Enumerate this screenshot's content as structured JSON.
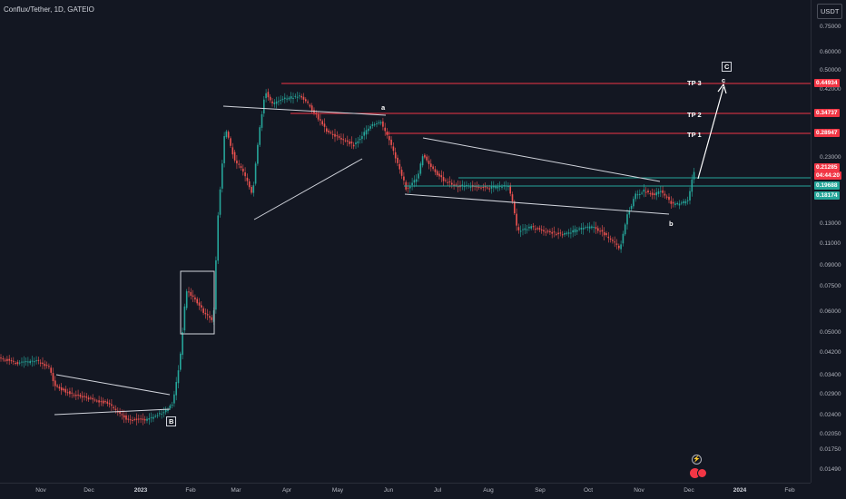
{
  "header": {
    "symbol_title": "Conflux/Tether, 1D, GATEIO",
    "currency": "USDT"
  },
  "price_axis": {
    "ticks": [
      "0.75000",
      "0.60000",
      "0.50000",
      "0.42000",
      "0.23000",
      "0.13000",
      "0.11000",
      "0.09000",
      "0.07500",
      "0.06000",
      "0.05000",
      "0.04200",
      "0.03400",
      "0.02900",
      "0.02400",
      "0.02050",
      "0.01750",
      "0.01490"
    ],
    "tags": [
      {
        "label": "0.44934",
        "color": "#f23645"
      },
      {
        "label": "0.34737",
        "color": "#f23645"
      },
      {
        "label": "0.28947",
        "color": "#f23645"
      },
      {
        "label": "0.21285",
        "color": "#f23645"
      },
      {
        "label": "04:44:20",
        "color": "#f23645"
      },
      {
        "label": "0.19688",
        "color": "#26a69a"
      },
      {
        "label": "0.18174",
        "color": "#26a69a"
      }
    ]
  },
  "time_axis": {
    "labels": [
      "Nov",
      "Dec",
      "2023",
      "Feb",
      "Mar",
      "Apr",
      "May",
      "Jun",
      "Jul",
      "Aug",
      "Sep",
      "Oct",
      "Nov",
      "Dec",
      "2024",
      "Feb"
    ]
  },
  "annotations": {
    "tp3": "TP 3",
    "tp2": "TP 2",
    "tp1": "TP 1",
    "wave_a": "a",
    "wave_b": "b",
    "wave_c": "c",
    "wave_B": "B",
    "wave_C": "C"
  },
  "colors": {
    "up": "#26a69a",
    "down": "#ef5350",
    "tp_line": "#f23645",
    "support_line": "#26a69a",
    "background": "#131722"
  },
  "icons": [
    "lightning-icon",
    "dividend-icon"
  ]
}
